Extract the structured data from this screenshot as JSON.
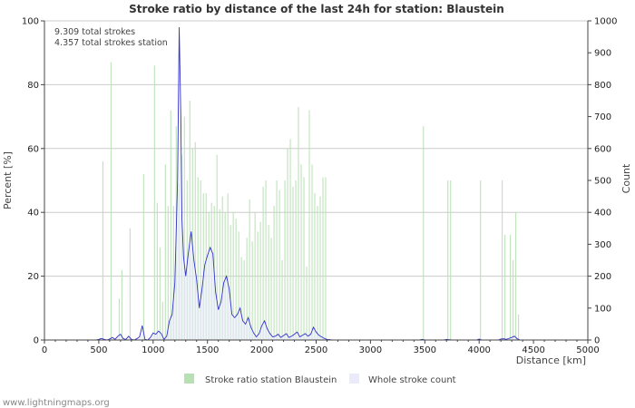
{
  "chart_data": {
    "type": "bar",
    "title": "Stroke ratio by distance of the last 24h for station: Blaustein",
    "xlabel": "Distance   [km]",
    "ylabel_left": "Percent   [%]",
    "ylabel_right": "Count",
    "xlim": [
      0,
      5000
    ],
    "ylim_left": [
      0,
      100
    ],
    "ylim_right": [
      0,
      1000
    ],
    "x_ticks": [
      0,
      500,
      1000,
      1500,
      2000,
      2500,
      3000,
      3500,
      4000,
      4500,
      5000
    ],
    "y_left_ticks": [
      0,
      20,
      40,
      60,
      80,
      100
    ],
    "y_right_ticks": [
      0,
      100,
      200,
      300,
      400,
      500,
      600,
      700,
      800,
      900,
      1000
    ],
    "bin_width_km": 25,
    "stats": {
      "total": "9.309 total strokes",
      "station": "4.357 total strokes station"
    },
    "legend": [
      {
        "name": "Stroke ratio station Blaustein",
        "color": "#b7e0b3"
      },
      {
        "name": "Whole stroke count",
        "color": "#eaeafb"
      }
    ],
    "series": [
      {
        "name": "Stroke ratio station Blaustein",
        "axis": "left",
        "style": "bars",
        "color": "#b7e0b3",
        "points": [
          [
            525,
            56
          ],
          [
            600,
            87
          ],
          [
            675,
            13
          ],
          [
            700,
            22
          ],
          [
            775,
            35
          ],
          [
            900,
            52
          ],
          [
            1000,
            86
          ],
          [
            1025,
            43
          ],
          [
            1050,
            29
          ],
          [
            1075,
            12
          ],
          [
            1100,
            55
          ],
          [
            1125,
            42
          ],
          [
            1150,
            72
          ],
          [
            1175,
            42
          ],
          [
            1200,
            67
          ],
          [
            1225,
            49
          ],
          [
            1250,
            58
          ],
          [
            1275,
            70
          ],
          [
            1300,
            50
          ],
          [
            1325,
            75
          ],
          [
            1350,
            60
          ],
          [
            1375,
            62
          ],
          [
            1400,
            51
          ],
          [
            1425,
            50
          ],
          [
            1450,
            46
          ],
          [
            1475,
            46
          ],
          [
            1500,
            40
          ],
          [
            1525,
            43
          ],
          [
            1550,
            42
          ],
          [
            1575,
            58
          ],
          [
            1600,
            41
          ],
          [
            1625,
            45
          ],
          [
            1650,
            40
          ],
          [
            1675,
            46
          ],
          [
            1700,
            36
          ],
          [
            1725,
            40
          ],
          [
            1750,
            38
          ],
          [
            1775,
            34
          ],
          [
            1800,
            26
          ],
          [
            1825,
            25
          ],
          [
            1850,
            32
          ],
          [
            1875,
            44
          ],
          [
            1900,
            31
          ],
          [
            1925,
            40
          ],
          [
            1950,
            34
          ],
          [
            1975,
            37
          ],
          [
            2000,
            48
          ],
          [
            2025,
            50
          ],
          [
            2050,
            36
          ],
          [
            2075,
            32
          ],
          [
            2100,
            42
          ],
          [
            2125,
            50
          ],
          [
            2150,
            47
          ],
          [
            2175,
            25
          ],
          [
            2200,
            50
          ],
          [
            2225,
            60
          ],
          [
            2250,
            63
          ],
          [
            2275,
            48
          ],
          [
            2300,
            50
          ],
          [
            2325,
            73
          ],
          [
            2350,
            55
          ],
          [
            2375,
            51
          ],
          [
            2400,
            23
          ],
          [
            2425,
            72
          ],
          [
            2450,
            55
          ],
          [
            2475,
            46
          ],
          [
            2500,
            42
          ],
          [
            2525,
            45
          ],
          [
            2550,
            51
          ],
          [
            2575,
            51
          ],
          [
            3475,
            67
          ],
          [
            3700,
            50
          ],
          [
            3725,
            50
          ],
          [
            4000,
            50
          ],
          [
            4200,
            50
          ],
          [
            4225,
            33
          ],
          [
            4275,
            33
          ],
          [
            4300,
            25
          ],
          [
            4325,
            40
          ],
          [
            4350,
            8
          ]
        ]
      },
      {
        "name": "Whole stroke count",
        "axis": "right",
        "style": "line",
        "color": "#3333cc",
        "fill": "#eaeafb",
        "points": [
          [
            0,
            0
          ],
          [
            475,
            0
          ],
          [
            500,
            2
          ],
          [
            525,
            5
          ],
          [
            550,
            2
          ],
          [
            575,
            0
          ],
          [
            600,
            3
          ],
          [
            625,
            8
          ],
          [
            650,
            2
          ],
          [
            675,
            12
          ],
          [
            700,
            18
          ],
          [
            725,
            4
          ],
          [
            750,
            2
          ],
          [
            775,
            12
          ],
          [
            800,
            2
          ],
          [
            825,
            0
          ],
          [
            850,
            4
          ],
          [
            875,
            10
          ],
          [
            900,
            45
          ],
          [
            925,
            2
          ],
          [
            950,
            0
          ],
          [
            975,
            8
          ],
          [
            1000,
            22
          ],
          [
            1025,
            18
          ],
          [
            1050,
            28
          ],
          [
            1075,
            20
          ],
          [
            1100,
            2
          ],
          [
            1125,
            12
          ],
          [
            1150,
            60
          ],
          [
            1175,
            80
          ],
          [
            1200,
            180
          ],
          [
            1225,
            500
          ],
          [
            1240,
            980
          ],
          [
            1255,
            700
          ],
          [
            1265,
            380
          ],
          [
            1280,
            260
          ],
          [
            1300,
            200
          ],
          [
            1325,
            275
          ],
          [
            1350,
            340
          ],
          [
            1375,
            250
          ],
          [
            1400,
            190
          ],
          [
            1425,
            100
          ],
          [
            1450,
            160
          ],
          [
            1475,
            235
          ],
          [
            1500,
            265
          ],
          [
            1525,
            290
          ],
          [
            1550,
            270
          ],
          [
            1575,
            150
          ],
          [
            1600,
            95
          ],
          [
            1625,
            120
          ],
          [
            1650,
            180
          ],
          [
            1675,
            200
          ],
          [
            1700,
            160
          ],
          [
            1725,
            80
          ],
          [
            1750,
            70
          ],
          [
            1775,
            80
          ],
          [
            1800,
            100
          ],
          [
            1825,
            60
          ],
          [
            1850,
            50
          ],
          [
            1875,
            70
          ],
          [
            1900,
            40
          ],
          [
            1925,
            22
          ],
          [
            1950,
            10
          ],
          [
            1975,
            20
          ],
          [
            2000,
            45
          ],
          [
            2025,
            60
          ],
          [
            2050,
            35
          ],
          [
            2075,
            20
          ],
          [
            2100,
            10
          ],
          [
            2125,
            12
          ],
          [
            2150,
            18
          ],
          [
            2175,
            8
          ],
          [
            2200,
            14
          ],
          [
            2225,
            20
          ],
          [
            2250,
            8
          ],
          [
            2275,
            12
          ],
          [
            2300,
            18
          ],
          [
            2325,
            25
          ],
          [
            2350,
            10
          ],
          [
            2375,
            15
          ],
          [
            2400,
            20
          ],
          [
            2425,
            12
          ],
          [
            2450,
            18
          ],
          [
            2475,
            40
          ],
          [
            2500,
            25
          ],
          [
            2525,
            15
          ],
          [
            2550,
            10
          ],
          [
            2575,
            5
          ],
          [
            2600,
            2
          ],
          [
            2650,
            0
          ],
          [
            3450,
            0
          ],
          [
            3475,
            2
          ],
          [
            3500,
            0
          ],
          [
            3675,
            0
          ],
          [
            3700,
            2
          ],
          [
            3725,
            1
          ],
          [
            3750,
            0
          ],
          [
            3975,
            0
          ],
          [
            4000,
            3
          ],
          [
            4025,
            0
          ],
          [
            4175,
            0
          ],
          [
            4200,
            3
          ],
          [
            4225,
            4
          ],
          [
            4250,
            2
          ],
          [
            4275,
            5
          ],
          [
            4300,
            8
          ],
          [
            4325,
            12
          ],
          [
            4350,
            4
          ],
          [
            4375,
            0
          ],
          [
            5000,
            0
          ]
        ]
      }
    ]
  },
  "footer": "www.lightningmaps.org"
}
